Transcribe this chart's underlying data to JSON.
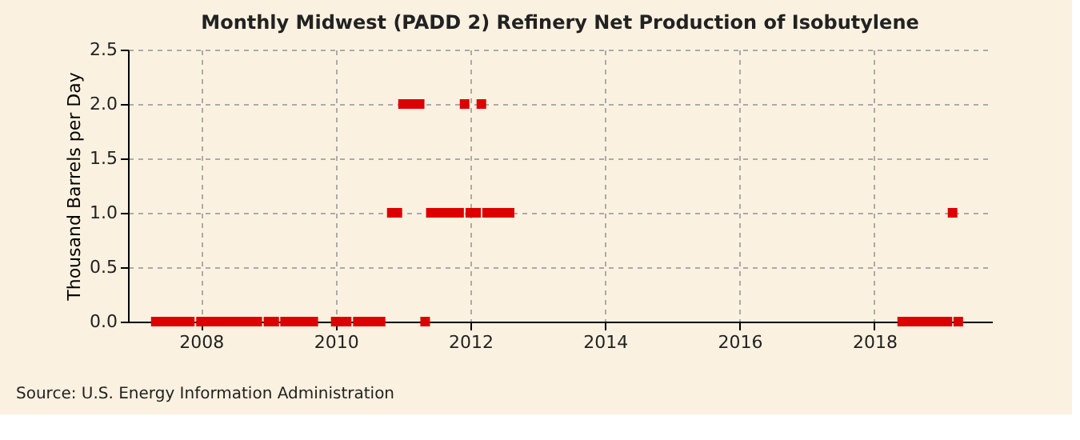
{
  "chart_data": {
    "type": "scatter",
    "title": "Monthly Midwest (PADD 2) Refinery Net Production of Isobutylene",
    "ylabel": "Thousand Barrels per Day",
    "annotations": [
      "Source: U.S. Energy Information Administration"
    ],
    "x": [
      "2007-05",
      "2007-06",
      "2007-07",
      "2007-08",
      "2007-09",
      "2007-10",
      "2007-11",
      "2008-01",
      "2008-02",
      "2008-03",
      "2008-04",
      "2008-05",
      "2008-06",
      "2008-07",
      "2008-08",
      "2008-09",
      "2008-10",
      "2008-11",
      "2009-01",
      "2009-02",
      "2009-04",
      "2009-05",
      "2009-06",
      "2009-07",
      "2009-08",
      "2009-09",
      "2010-01",
      "2010-02",
      "2010-03",
      "2010-05",
      "2010-06",
      "2010-07",
      "2010-08",
      "2010-09",
      "2010-11",
      "2010-12",
      "2011-01",
      "2011-02",
      "2011-03",
      "2011-04",
      "2011-05",
      "2011-06",
      "2011-07",
      "2011-08",
      "2011-09",
      "2011-10",
      "2011-11",
      "2011-12",
      "2012-01",
      "2012-02",
      "2012-03",
      "2012-04",
      "2012-05",
      "2012-06",
      "2012-07",
      "2012-08",
      "2018-06",
      "2018-07",
      "2018-08",
      "2018-09",
      "2018-10",
      "2018-11",
      "2018-12",
      "2019-01",
      "2019-02",
      "2019-03",
      "2019-04"
    ],
    "series": [
      {
        "color": "#dd0000",
        "values": [
          0,
          0,
          0,
          0,
          0,
          0,
          0,
          0,
          0,
          0,
          0,
          0,
          0,
          0,
          0,
          0,
          0,
          0,
          0,
          0,
          0,
          0,
          0,
          0,
          0,
          0,
          0,
          0,
          0,
          0,
          0,
          0,
          0,
          0,
          1,
          1,
          2,
          2,
          2,
          2,
          0,
          1,
          1,
          1,
          1,
          1,
          1,
          2,
          1,
          1,
          2,
          1,
          1,
          1,
          1,
          1,
          0,
          0,
          0,
          0,
          0,
          0,
          0,
          0,
          0,
          1,
          0
        ]
      }
    ],
    "xlim": [
      "2006-12",
      "2019-10"
    ],
    "xticks": [
      "2008",
      "2010",
      "2012",
      "2014",
      "2016",
      "2018"
    ],
    "ylim": [
      0,
      2.5
    ],
    "yticks": [
      {
        "value": 0,
        "label": "0.0"
      },
      0.5,
      {
        "value": 1,
        "label": "1.0"
      },
      1.5,
      {
        "value": 2,
        "label": "2.0"
      },
      2.5
    ],
    "grid": true,
    "marker": "square"
  }
}
